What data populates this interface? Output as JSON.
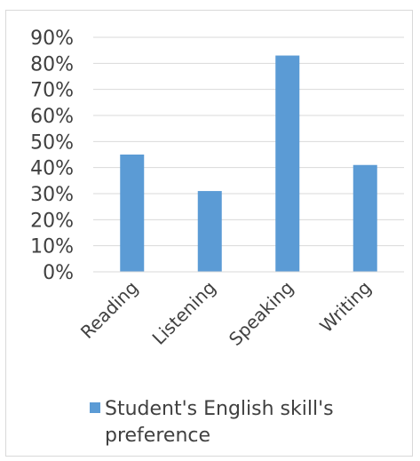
{
  "chart_data": {
    "type": "bar",
    "categories": [
      "Reading",
      "Listening",
      "Speaking",
      "Writing"
    ],
    "series": [
      {
        "name": "Student's English skill's preference",
        "values": [
          45,
          31,
          83,
          41
        ]
      }
    ],
    "title": "",
    "xlabel": "",
    "ylabel": "",
    "ylim": [
      0,
      90
    ],
    "yticks": [
      {
        "value": 0,
        "label": "0%"
      },
      {
        "value": 10,
        "label": "10%"
      },
      {
        "value": 20,
        "label": "20%"
      },
      {
        "value": 30,
        "label": "30%"
      },
      {
        "value": 40,
        "label": "40%"
      },
      {
        "value": 50,
        "label": "50%"
      },
      {
        "value": 60,
        "label": "60%"
      },
      {
        "value": 70,
        "label": "70%"
      },
      {
        "value": 80,
        "label": "80%"
      },
      {
        "value": 90,
        "label": "90%"
      }
    ],
    "grid": true,
    "legend": "bottom",
    "bar_color": "#5b9bd5",
    "grid_color": "#d9d9d9",
    "legend_lines": [
      "Student's English skill's",
      "preference"
    ]
  }
}
